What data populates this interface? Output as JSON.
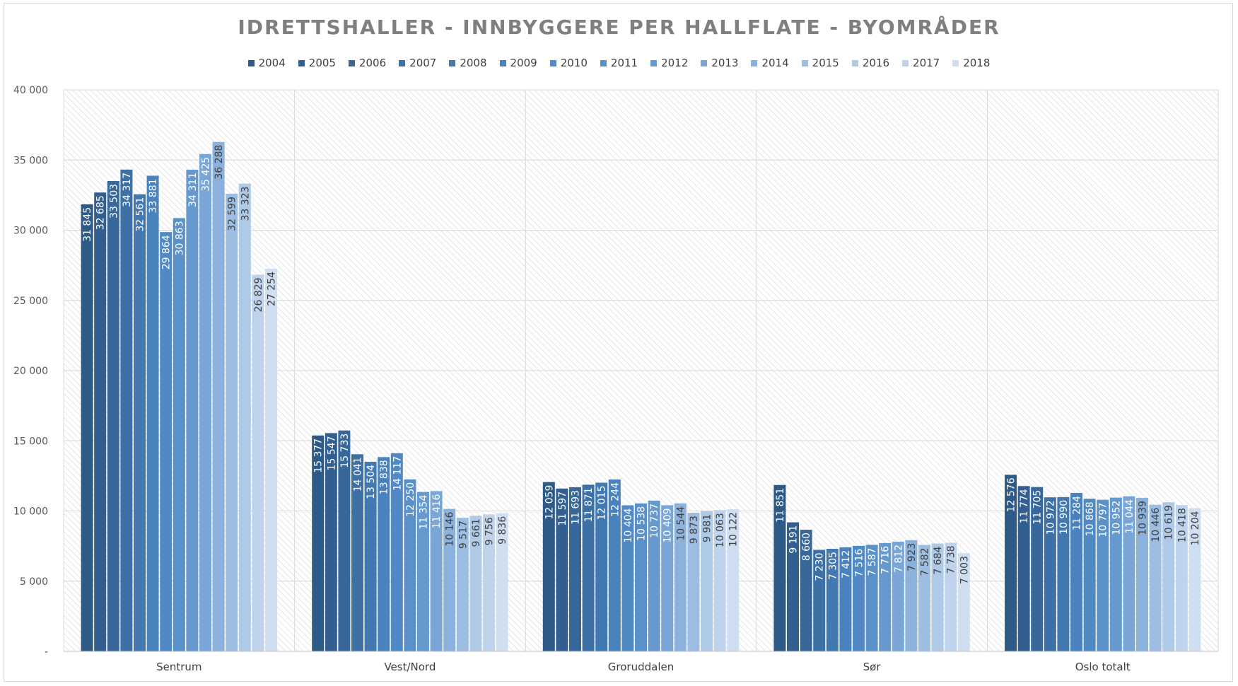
{
  "chart_data": {
    "type": "bar",
    "title": "IDRETTSHALLER - INNBYGGERE PER HALLFLATE - BYOMRÅDER",
    "categories": [
      "Sentrum",
      "Vest/Nord",
      "Groruddalen",
      "Sør",
      "Oslo totalt"
    ],
    "ylim": [
      0,
      40000
    ],
    "yticks": [
      0,
      5000,
      10000,
      15000,
      20000,
      25000,
      30000,
      35000,
      40000
    ],
    "ytick_labels": [
      "-",
      "5 000",
      "10 000",
      "15 000",
      "20 000",
      "25 000",
      "30 000",
      "35 000",
      "40 000"
    ],
    "grid": true,
    "legend_position": "top",
    "series": [
      {
        "name": "2004",
        "color": "#2e5a88",
        "values": [
          31845,
          15377,
          12059,
          11851,
          12576
        ],
        "labels": [
          "31 845",
          "15 377",
          "12 059",
          "11 851",
          "12 576"
        ]
      },
      {
        "name": "2005",
        "color": "#335f90",
        "values": [
          32685,
          15547,
          11597,
          9191,
          11774
        ],
        "labels": [
          "32 685",
          "15 547",
          "11 597",
          "9 191",
          "11 774"
        ]
      },
      {
        "name": "2006",
        "color": "#386799",
        "values": [
          33503,
          15733,
          11693,
          8660,
          11705
        ],
        "labels": [
          "33 503",
          "15 733",
          "11 693",
          "8 660",
          "11 705"
        ]
      },
      {
        "name": "2007",
        "color": "#3d70a5",
        "values": [
          34317,
          14041,
          11871,
          7230,
          10972
        ],
        "labels": [
          "34 317",
          "14 041",
          "11 871",
          "7 230",
          "10 972"
        ]
      },
      {
        "name": "2008",
        "color": "#4379b1",
        "values": [
          32561,
          13504,
          12015,
          7305,
          10990
        ],
        "labels": [
          "32 561",
          "13 504",
          "12 015",
          "7 305",
          "10 990"
        ]
      },
      {
        "name": "2009",
        "color": "#4a82bd",
        "values": [
          33881,
          13838,
          12244,
          7412,
          11284
        ],
        "labels": [
          "33 881",
          "13 838",
          "12 244",
          "7 412",
          "11 284"
        ]
      },
      {
        "name": "2010",
        "color": "#5189c4",
        "values": [
          29864,
          14117,
          10404,
          7516,
          10868
        ],
        "labels": [
          "29 864",
          "14 117",
          "10 404",
          "7 516",
          "10 868"
        ]
      },
      {
        "name": "2011",
        "color": "#5a91c9",
        "values": [
          30863,
          12250,
          10538,
          7587,
          10797
        ],
        "labels": [
          "30 863",
          "12 250",
          "10 538",
          "7 587",
          "10 797"
        ]
      },
      {
        "name": "2012",
        "color": "#669acf",
        "values": [
          34311,
          11354,
          10737,
          7716,
          10952
        ],
        "labels": [
          "34 311",
          "11 354",
          "10 737",
          "7 716",
          "10 952"
        ]
      },
      {
        "name": "2013",
        "color": "#79a6d6",
        "values": [
          35425,
          11416,
          10409,
          7812,
          11044
        ],
        "labels": [
          "35 425",
          "11 416",
          "10 409",
          "7 812",
          "11 044"
        ]
      },
      {
        "name": "2014",
        "color": "#8bb2dc",
        "values": [
          36288,
          10146,
          10544,
          7923,
          10939
        ],
        "labels": [
          "36 288",
          "10 146",
          "10 544",
          "7 923",
          "10 939"
        ]
      },
      {
        "name": "2015",
        "color": "#9dbee2",
        "values": [
          32599,
          9517,
          9873,
          7582,
          10446
        ],
        "labels": [
          "32 599",
          "9 517",
          "9 873",
          "7 582",
          "10 446"
        ]
      },
      {
        "name": "2016",
        "color": "#afcae7",
        "values": [
          33323,
          9661,
          9981,
          7684,
          10619
        ],
        "labels": [
          "33 323",
          "9 661",
          "9 981",
          "7 684",
          "10 619"
        ]
      },
      {
        "name": "2017",
        "color": "#bfd4ec",
        "values": [
          26829,
          9756,
          10063,
          7738,
          10418
        ],
        "labels": [
          "26 829",
          "9 756",
          "10 063",
          "7 738",
          "10 418"
        ]
      },
      {
        "name": "2018",
        "color": "#cfdef1",
        "values": [
          27254,
          9836,
          10122,
          7003,
          10204
        ],
        "labels": [
          "27 254",
          "9 836",
          "10 122",
          "7 003",
          "10 204"
        ]
      }
    ]
  }
}
